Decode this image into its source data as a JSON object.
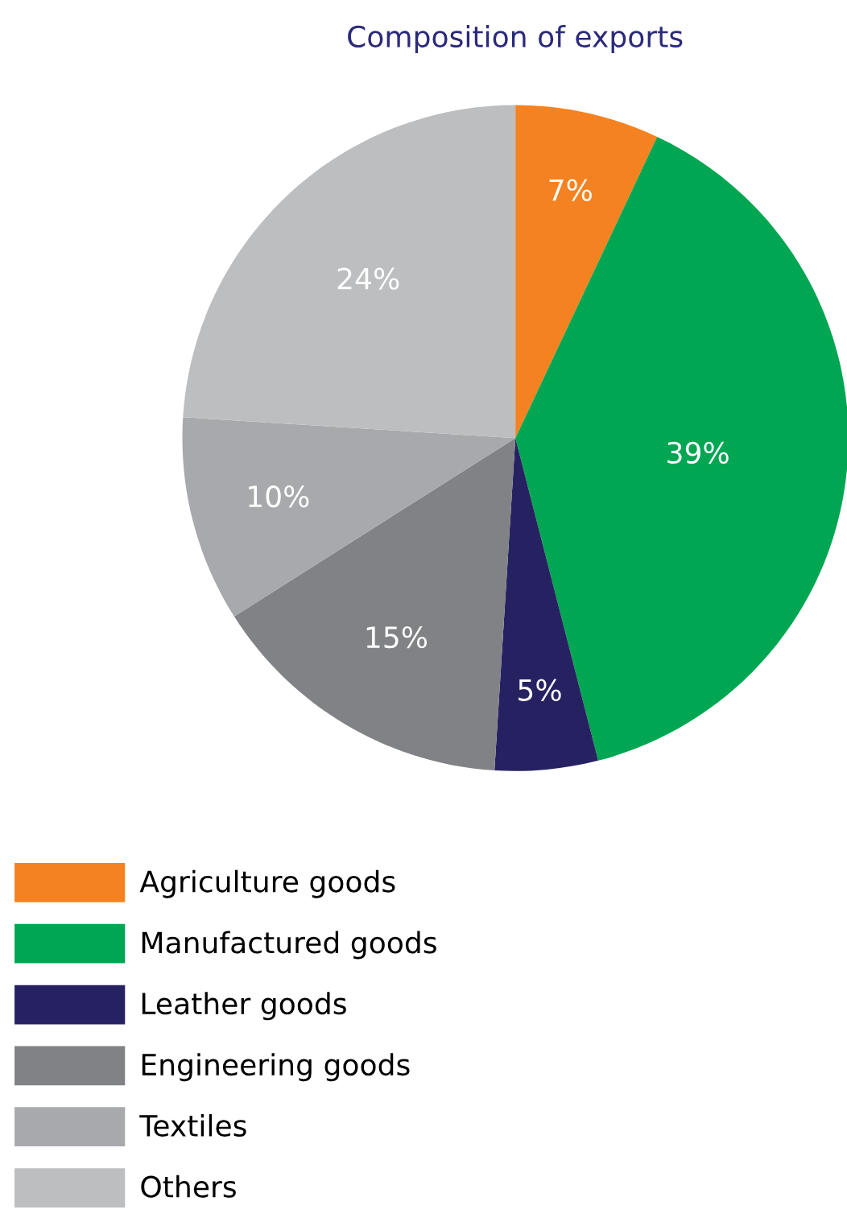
{
  "chart_data": {
    "type": "pie",
    "title": "Composition of exports",
    "categories": [
      "Agriculture goods",
      "Manufactured goods",
      "Leather goods",
      "Engineering goods",
      "Textiles",
      "Others"
    ],
    "values": [
      7,
      39,
      5,
      15,
      10,
      24
    ],
    "value_labels": [
      "7%",
      "39%",
      "5%",
      "15%",
      "10%",
      "24%"
    ],
    "colors": [
      "#f58220",
      "#00a651",
      "#262262",
      "#808285",
      "#a7a9ac",
      "#bcbec0"
    ],
    "legend": "bottom left"
  }
}
